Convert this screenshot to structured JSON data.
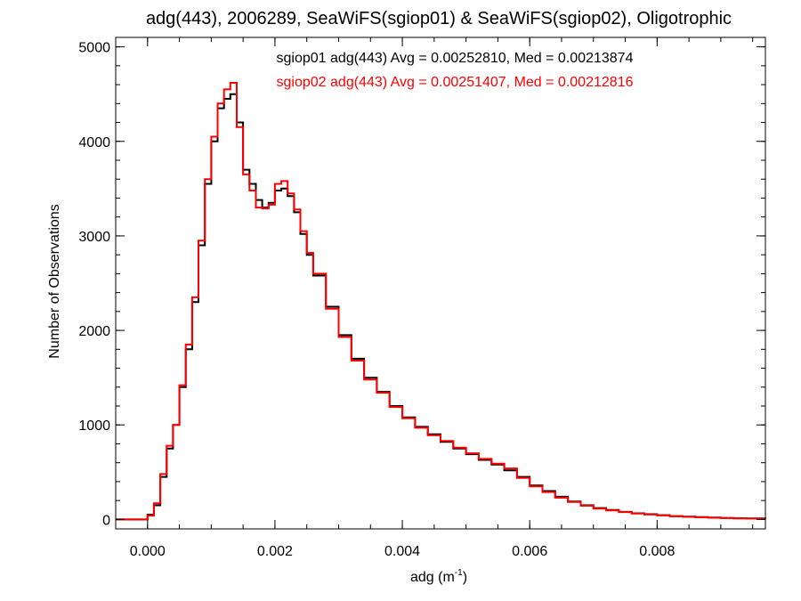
{
  "chart_data": {
    "type": "line",
    "title": "adg(443), 2006289, SeaWiFS(sgiop01) & SeaWiFS(sgiop02), Oligotrophic",
    "xlabel": "adg (m",
    "xlabel_sup": "-1",
    "xlabel_close": ")",
    "ylabel": "Number of Observations",
    "xlim": [
      -0.0005,
      0.0097
    ],
    "ylim": [
      -100,
      5100
    ],
    "xticks": [
      0.0,
      0.002,
      0.004,
      0.006,
      0.008
    ],
    "xtick_labels": [
      "0.000",
      "0.002",
      "0.004",
      "0.006",
      "0.008"
    ],
    "yticks": [
      0,
      1000,
      2000,
      3000,
      4000,
      5000
    ],
    "ytick_labels": [
      "0",
      "1000",
      "2000",
      "3000",
      "4000",
      "5000"
    ],
    "x_minor_step": 0.0005,
    "y_minor_step": 200,
    "grid": false,
    "legend_placement": "top-center",
    "annotations": [
      {
        "text": "sgiop01 adg(443) Avg = 0.00252810, Med = 0.00213874",
        "color": "#000000"
      },
      {
        "text": "sgiop02 adg(443) Avg = 0.00251407, Med = 0.00212816",
        "color": "#ff0000"
      }
    ],
    "series": [
      {
        "color": "#000000",
        "x": [
          -0.0007,
          -0.0001,
          0.0,
          0.0001,
          0.0002,
          0.0003,
          0.0004,
          0.0005,
          0.0006,
          0.0007,
          0.0008,
          0.0009,
          0.001,
          0.0011,
          0.0012,
          0.0013,
          0.0014,
          0.0015,
          0.0016,
          0.0017,
          0.0018,
          0.0019,
          0.002,
          0.0021,
          0.0022,
          0.0023,
          0.0024,
          0.0025,
          0.0026,
          0.0028,
          0.003,
          0.0032,
          0.0034,
          0.0036,
          0.0038,
          0.004,
          0.0042,
          0.0044,
          0.0046,
          0.0048,
          0.005,
          0.0052,
          0.0054,
          0.0056,
          0.0058,
          0.006,
          0.0062,
          0.0064,
          0.0066,
          0.0068,
          0.007,
          0.0072,
          0.0074,
          0.0076,
          0.0078,
          0.008,
          0.0082,
          0.0084,
          0.0086,
          0.0088,
          0.009,
          0.0092,
          0.0094,
          0.0097
        ],
        "y": [
          0,
          0,
          50,
          150,
          450,
          750,
          1000,
          1400,
          1800,
          2300,
          2900,
          3550,
          4000,
          4350,
          4450,
          4500,
          4200,
          3700,
          3550,
          3380,
          3300,
          3350,
          3480,
          3500,
          3420,
          3250,
          3020,
          2800,
          2580,
          2250,
          1950,
          1700,
          1500,
          1350,
          1200,
          1080,
          980,
          900,
          820,
          750,
          690,
          630,
          580,
          520,
          450,
          360,
          300,
          240,
          190,
          150,
          120,
          100,
          80,
          65,
          55,
          45,
          35,
          30,
          25,
          20,
          15,
          12,
          10,
          8
        ]
      },
      {
        "color": "#ff0000",
        "x": [
          -0.0007,
          -0.0001,
          0.0,
          0.0001,
          0.0002,
          0.0003,
          0.0004,
          0.0005,
          0.0006,
          0.0007,
          0.0008,
          0.0009,
          0.001,
          0.0011,
          0.0012,
          0.0013,
          0.0014,
          0.0015,
          0.0016,
          0.0017,
          0.0018,
          0.0019,
          0.002,
          0.0021,
          0.0022,
          0.0023,
          0.0024,
          0.0025,
          0.0026,
          0.0028,
          0.003,
          0.0032,
          0.0034,
          0.0036,
          0.0038,
          0.004,
          0.0042,
          0.0044,
          0.0046,
          0.0048,
          0.005,
          0.0052,
          0.0054,
          0.0056,
          0.0058,
          0.006,
          0.0062,
          0.0064,
          0.0066,
          0.0068,
          0.007,
          0.0072,
          0.0074,
          0.0076,
          0.0078,
          0.008,
          0.0082,
          0.0084,
          0.0086,
          0.0088,
          0.009,
          0.0092,
          0.0094,
          0.0097
        ],
        "y": [
          0,
          0,
          40,
          170,
          480,
          780,
          1000,
          1420,
          1850,
          2350,
          2950,
          3600,
          4050,
          4400,
          4550,
          4620,
          4150,
          3650,
          3480,
          3300,
          3290,
          3330,
          3550,
          3580,
          3450,
          3280,
          3050,
          2820,
          2600,
          2230,
          1930,
          1680,
          1480,
          1340,
          1190,
          1070,
          970,
          890,
          830,
          760,
          700,
          640,
          590,
          540,
          440,
          350,
          290,
          230,
          185,
          145,
          115,
          95,
          78,
          62,
          52,
          42,
          34,
          28,
          22,
          18,
          14,
          11,
          9,
          7
        ]
      }
    ]
  }
}
